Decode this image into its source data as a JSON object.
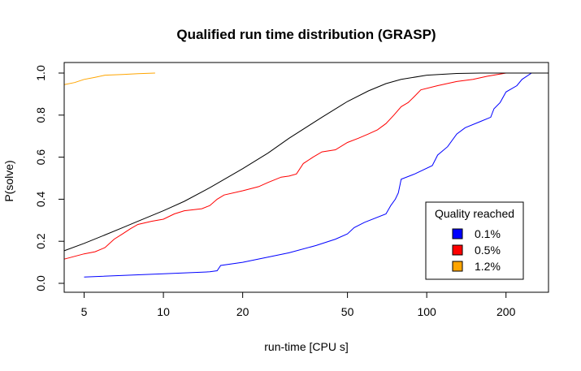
{
  "chart_data": {
    "type": "line",
    "title": "Qualified run time distribution (GRASP)",
    "xlabel": "run-time [CPU s]",
    "ylabel": "P(solve)",
    "x_scale": "log",
    "xlim": [
      4.2,
      290
    ],
    "ylim": [
      0,
      1
    ],
    "x_ticks": [
      5,
      10,
      20,
      50,
      100,
      200
    ],
    "x_tick_labels": [
      "5",
      "10",
      "20",
      "50",
      "100",
      "200"
    ],
    "y_ticks": [
      0,
      0.2,
      0.4,
      0.6,
      0.8,
      1
    ],
    "y_tick_labels": [
      "0.0",
      "0.2",
      "0.4",
      "0.6",
      "0.8",
      "1.0"
    ],
    "grid": false,
    "legend": {
      "title": "Quality reached",
      "position": "bottom-right",
      "entries": [
        {
          "label": "0.1%",
          "color": "#0000ff"
        },
        {
          "label": "0.5%",
          "color": "#ff0000"
        },
        {
          "label": "1.2%",
          "color": "#ffa500"
        }
      ]
    },
    "series": [
      {
        "name": "0.1%",
        "color": "#0000ff",
        "points": [
          [
            5,
            0.03
          ],
          [
            10,
            0.045
          ],
          [
            15,
            0.055
          ],
          [
            16,
            0.06
          ],
          [
            16.5,
            0.085
          ],
          [
            20,
            0.1
          ],
          [
            30,
            0.145
          ],
          [
            38,
            0.18
          ],
          [
            45,
            0.21
          ],
          [
            50,
            0.235
          ],
          [
            53,
            0.265
          ],
          [
            58,
            0.29
          ],
          [
            70,
            0.33
          ],
          [
            73,
            0.37
          ],
          [
            76,
            0.4
          ],
          [
            78,
            0.43
          ],
          [
            80,
            0.495
          ],
          [
            90,
            0.52
          ],
          [
            105,
            0.56
          ],
          [
            110,
            0.61
          ],
          [
            120,
            0.65
          ],
          [
            130,
            0.71
          ],
          [
            140,
            0.74
          ],
          [
            160,
            0.77
          ],
          [
            175,
            0.79
          ],
          [
            180,
            0.83
          ],
          [
            190,
            0.86
          ],
          [
            200,
            0.91
          ],
          [
            220,
            0.94
          ],
          [
            230,
            0.97
          ],
          [
            250,
            1.0
          ]
        ]
      },
      {
        "name": "0.5%",
        "color": "#ff0000",
        "points": [
          [
            4.2,
            0.115
          ],
          [
            5,
            0.14
          ],
          [
            5.5,
            0.15
          ],
          [
            6,
            0.17
          ],
          [
            6.5,
            0.21
          ],
          [
            7,
            0.235
          ],
          [
            7.5,
            0.26
          ],
          [
            8,
            0.28
          ],
          [
            9,
            0.295
          ],
          [
            10,
            0.305
          ],
          [
            11,
            0.33
          ],
          [
            12,
            0.345
          ],
          [
            14,
            0.355
          ],
          [
            15,
            0.37
          ],
          [
            16,
            0.4
          ],
          [
            17,
            0.42
          ],
          [
            20,
            0.44
          ],
          [
            23,
            0.46
          ],
          [
            25,
            0.48
          ],
          [
            28,
            0.505
          ],
          [
            30,
            0.51
          ],
          [
            32,
            0.52
          ],
          [
            34,
            0.57
          ],
          [
            37,
            0.6
          ],
          [
            40,
            0.625
          ],
          [
            45,
            0.635
          ],
          [
            50,
            0.67
          ],
          [
            55,
            0.69
          ],
          [
            60,
            0.71
          ],
          [
            65,
            0.73
          ],
          [
            70,
            0.76
          ],
          [
            75,
            0.8
          ],
          [
            80,
            0.84
          ],
          [
            85,
            0.86
          ],
          [
            90,
            0.89
          ],
          [
            95,
            0.92
          ],
          [
            110,
            0.94
          ],
          [
            130,
            0.96
          ],
          [
            150,
            0.97
          ],
          [
            170,
            0.985
          ],
          [
            200,
            1.0
          ]
        ]
      },
      {
        "name": "1.2%",
        "color": "#ffa500",
        "points": [
          [
            4.2,
            0.945
          ],
          [
            4.6,
            0.955
          ],
          [
            5,
            0.97
          ],
          [
            5.5,
            0.98
          ],
          [
            6,
            0.99
          ],
          [
            7,
            0.993
          ],
          [
            8,
            0.997
          ],
          [
            9.3,
            1.0
          ]
        ]
      },
      {
        "name": "",
        "color": "#000000",
        "points": [
          [
            4.2,
            0.155
          ],
          [
            5,
            0.19
          ],
          [
            6,
            0.23
          ],
          [
            7,
            0.265
          ],
          [
            8,
            0.295
          ],
          [
            10,
            0.345
          ],
          [
            12,
            0.39
          ],
          [
            15,
            0.455
          ],
          [
            20,
            0.545
          ],
          [
            25,
            0.62
          ],
          [
            30,
            0.69
          ],
          [
            40,
            0.79
          ],
          [
            50,
            0.865
          ],
          [
            60,
            0.915
          ],
          [
            70,
            0.95
          ],
          [
            80,
            0.97
          ],
          [
            100,
            0.99
          ],
          [
            130,
            0.998
          ],
          [
            160,
            1.0
          ],
          [
            290,
            1.0
          ]
        ]
      }
    ]
  }
}
